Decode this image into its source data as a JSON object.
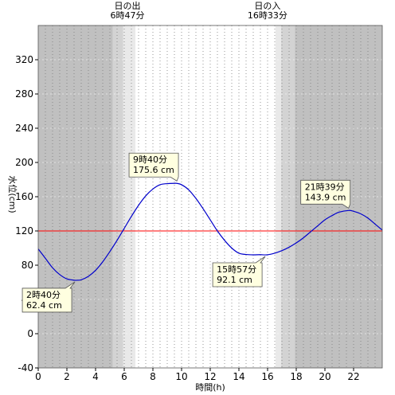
{
  "chart_data": {
    "type": "line",
    "xlabel": "時間(h)",
    "ylabel": "水位(cm)",
    "xlim": [
      0,
      24
    ],
    "ylim": [
      -40,
      360
    ],
    "x_ticks": [
      0,
      2,
      4,
      6,
      8,
      10,
      12,
      14,
      16,
      18,
      20,
      22
    ],
    "y_ticks": [
      -40,
      0,
      40,
      80,
      120,
      160,
      200,
      240,
      280,
      320
    ],
    "grid": "vertical dotted every 0.5h",
    "reference_line": {
      "y": 120,
      "color": "#ff0000"
    },
    "series": [
      {
        "color": "#0000cc",
        "x": [
          0,
          0.5,
          1,
          1.5,
          2,
          2.5,
          2.67,
          3,
          3.5,
          4,
          4.5,
          5,
          5.5,
          6,
          6.5,
          7,
          7.5,
          8,
          8.5,
          9,
          9.5,
          9.67,
          10,
          10.5,
          11,
          11.5,
          12,
          12.5,
          13,
          13.5,
          14,
          14.5,
          15,
          15.5,
          15.95,
          16.5,
          17,
          17.5,
          18,
          18.5,
          19,
          19.5,
          20,
          20.5,
          21,
          21.65,
          22,
          22.5,
          23,
          23.5,
          24
        ],
        "y": [
          99,
          88,
          77,
          69,
          64,
          62.5,
          62.4,
          63,
          67,
          74,
          84,
          96,
          109,
          123,
          137,
          150,
          161,
          169,
          174,
          175.3,
          175.6,
          175.6,
          174,
          168,
          158,
          146,
          133,
          120,
          109,
          100,
          94,
          92.5,
          92.1,
          92.3,
          92.1,
          94,
          97,
          101,
          106,
          112,
          119,
          126,
          133,
          138,
          142,
          143.9,
          143,
          140,
          135,
          128,
          121
        ]
      }
    ],
    "sunrise": {
      "label": "日の出",
      "time": "6時47分",
      "hour": 6.78
    },
    "sunset": {
      "label": "日の入",
      "time": "16時33分",
      "hour": 16.55
    },
    "twilight_bands": [
      [
        5.2,
        5.93
      ],
      [
        5.93,
        6.78
      ],
      [
        16.55,
        16.95
      ],
      [
        16.95,
        17.9
      ]
    ],
    "annotations": [
      {
        "time": "2時40分",
        "value": "62.4 cm",
        "x": 2.67,
        "y": 62.4,
        "pos": "below-left"
      },
      {
        "time": "9時40分",
        "value": "175.6 cm",
        "x": 9.67,
        "y": 175.6,
        "pos": "above-left"
      },
      {
        "time": "15時57分",
        "value": "92.1 cm",
        "x": 15.95,
        "y": 92.1,
        "pos": "below-left"
      },
      {
        "time": "21時39分",
        "value": "143.9 cm",
        "x": 21.65,
        "y": 143.9,
        "pos": "above-left"
      }
    ]
  }
}
